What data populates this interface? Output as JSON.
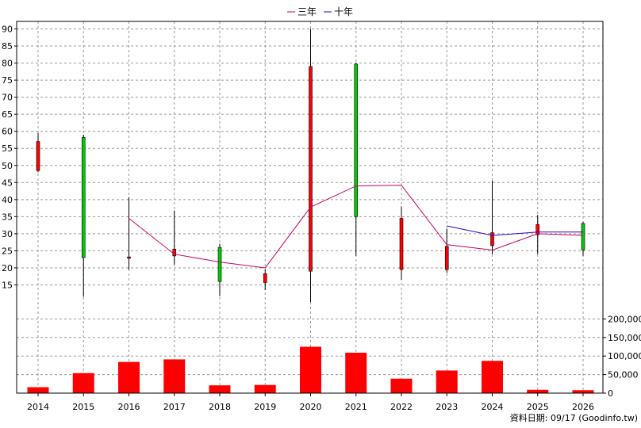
{
  "chart_data": {
    "type": "candlestick",
    "legend": {
      "placement": "top-center",
      "items": [
        {
          "name": "三年",
          "color": "#cc0066"
        },
        {
          "name": "十年",
          "color": "#3300cc"
        }
      ]
    },
    "years": [
      "2014",
      "2015",
      "2016",
      "2017",
      "2018",
      "2019",
      "2020",
      "2021",
      "2022",
      "2023",
      "2024",
      "2025",
      "2026"
    ],
    "price": {
      "ylim": [
        10,
        90
      ],
      "yticks": [
        15,
        20,
        25,
        30,
        35,
        40,
        45,
        50,
        55,
        60,
        65,
        70,
        75,
        80,
        85,
        90
      ],
      "candles": [
        {
          "year": "2014",
          "open": 57.0,
          "close": 48.5,
          "high": 59.5,
          "low": 48.0
        },
        {
          "year": "2015",
          "open": 23.0,
          "close": 58.2,
          "high": 59.0,
          "low": 11.5
        },
        {
          "year": "2016",
          "open": 23.2,
          "close": 22.8,
          "high": 40.7,
          "low": 19.5
        },
        {
          "year": "2017",
          "open": 25.5,
          "close": 23.5,
          "high": 36.8,
          "low": 21.0
        },
        {
          "year": "2018",
          "open": 16.0,
          "close": 26.0,
          "high": 27.0,
          "low": 11.7
        },
        {
          "year": "2019",
          "open": 18.3,
          "close": 15.7,
          "high": 19.5,
          "low": 13.5
        },
        {
          "year": "2020",
          "open": 79.0,
          "close": 19.0,
          "high": 90.0,
          "low": 10.0
        },
        {
          "year": "2021",
          "open": 35.0,
          "close": 79.7,
          "high": 80.0,
          "low": 23.5
        },
        {
          "year": "2022",
          "open": 34.5,
          "close": 19.5,
          "high": 38.0,
          "low": 16.5
        },
        {
          "year": "2023",
          "open": 26.3,
          "close": 19.5,
          "high": 31.5,
          "low": 18.5
        },
        {
          "year": "2024",
          "open": 30.3,
          "close": 26.5,
          "high": 45.5,
          "low": 24.0
        },
        {
          "year": "2025",
          "open": 32.7,
          "close": 29.7,
          "high": 35.5,
          "low": 24.0
        },
        {
          "year": "2026",
          "open": 25.3,
          "close": 33.0,
          "high": 33.5,
          "low": 23.5
        }
      ],
      "series": [
        {
          "name": "三年",
          "color": "#cc0066",
          "points": [
            [
              "2016",
              34.5
            ],
            [
              "2017",
              24.0
            ],
            [
              "2018",
              21.7
            ],
            [
              "2019",
              20.0
            ],
            [
              "2020",
              37.8
            ],
            [
              "2021",
              44.0
            ],
            [
              "2022",
              44.2
            ],
            [
              "2023",
              26.8
            ],
            [
              "2024",
              25.2
            ],
            [
              "2025",
              30.0
            ],
            [
              "2026",
              29.5
            ]
          ]
        },
        {
          "name": "十年",
          "color": "#3300cc",
          "points": [
            [
              "2023",
              32.3
            ],
            [
              "2024",
              29.5
            ],
            [
              "2025",
              30.5
            ],
            [
              "2026",
              30.5
            ]
          ]
        }
      ]
    },
    "volume": {
      "ylim": [
        0,
        250000
      ],
      "yticks": [
        0,
        50000,
        100000,
        150000,
        200000
      ],
      "ytick_labels": [
        "0",
        "50,000",
        "100,000",
        "150,000",
        "200,000"
      ],
      "color": "#ff0000",
      "values": [
        16000,
        54000,
        84000,
        91000,
        21000,
        22000,
        125000,
        109000,
        39000,
        61000,
        87000,
        9000,
        8000
      ]
    }
  },
  "footer": {
    "text": "資料日期: 09/17  (Goodinfo.tw)"
  }
}
